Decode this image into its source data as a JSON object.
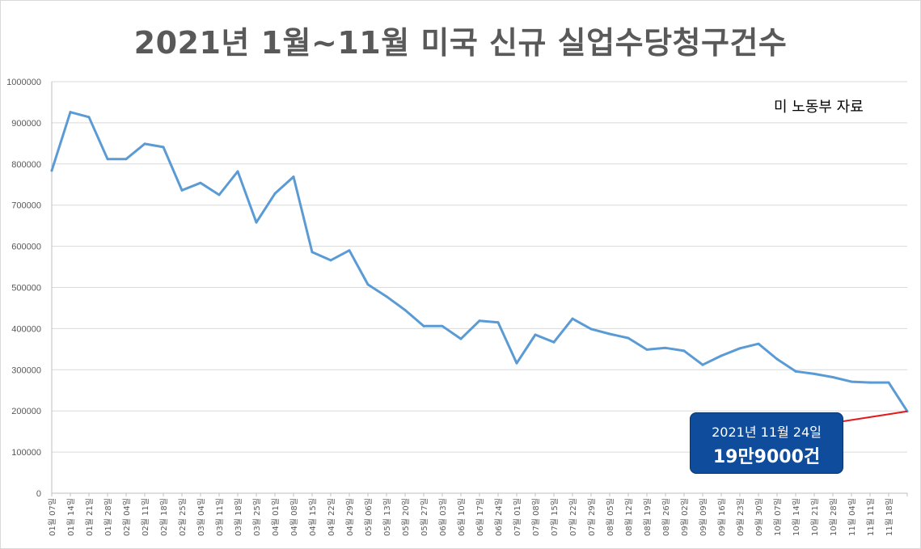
{
  "chart_data": {
    "type": "line",
    "title": "2021년 1월~11월 미국 신규 실업수당청구건수",
    "annotation_source": "미 노동부 자료",
    "ylim": [
      0,
      1000000
    ],
    "yticks": [
      "0",
      "100000",
      "200000",
      "300000",
      "400000",
      "500000",
      "600000",
      "700000",
      "800000",
      "900000",
      "1000000"
    ],
    "grid": true,
    "line_color": "#5b9bd5",
    "callout": {
      "date": "2021년 11월 24일",
      "value": "19만9000건",
      "color": "#0f4c9c",
      "pointer_color": "#e31a1c"
    },
    "x": [
      "01월 07일",
      "01월 14일",
      "01월 21일",
      "01월 28일",
      "02월 04일",
      "02월 11일",
      "02월 18일",
      "02월 25일",
      "03월 04일",
      "03월 11일",
      "03월 18일",
      "03월 25일",
      "04월 01일",
      "04월 08일",
      "04월 15일",
      "04월 22일",
      "04월 29일",
      "05월 06일",
      "05월 13일",
      "05월 20일",
      "05월 27일",
      "06월 03일",
      "06월 10일",
      "06월 17일",
      "06월 24일",
      "07월 01일",
      "07월 08일",
      "07월 15일",
      "07월 22일",
      "07월 29일",
      "08월 05일",
      "08월 12일",
      "08월 19일",
      "08월 26일",
      "09월 02일",
      "09월 09일",
      "09월 16일",
      "09월 23일",
      "09월 30일",
      "10월 07일",
      "10월 14일",
      "10월 21일",
      "10월 28일",
      "11월 04일",
      "11월 11일",
      "11월 18일",
      ""
    ],
    "values": [
      784000,
      926000,
      914000,
      812000,
      812000,
      849000,
      841000,
      736000,
      754000,
      725000,
      782000,
      658000,
      728000,
      769000,
      586000,
      566000,
      590000,
      507000,
      478000,
      445000,
      406000,
      406000,
      375000,
      419000,
      415000,
      316000,
      385000,
      367000,
      424000,
      399000,
      387000,
      377000,
      349000,
      353000,
      346000,
      312000,
      334000,
      352000,
      363000,
      326000,
      296000,
      290000,
      282000,
      271000,
      269000,
      269000,
      199000
    ]
  }
}
